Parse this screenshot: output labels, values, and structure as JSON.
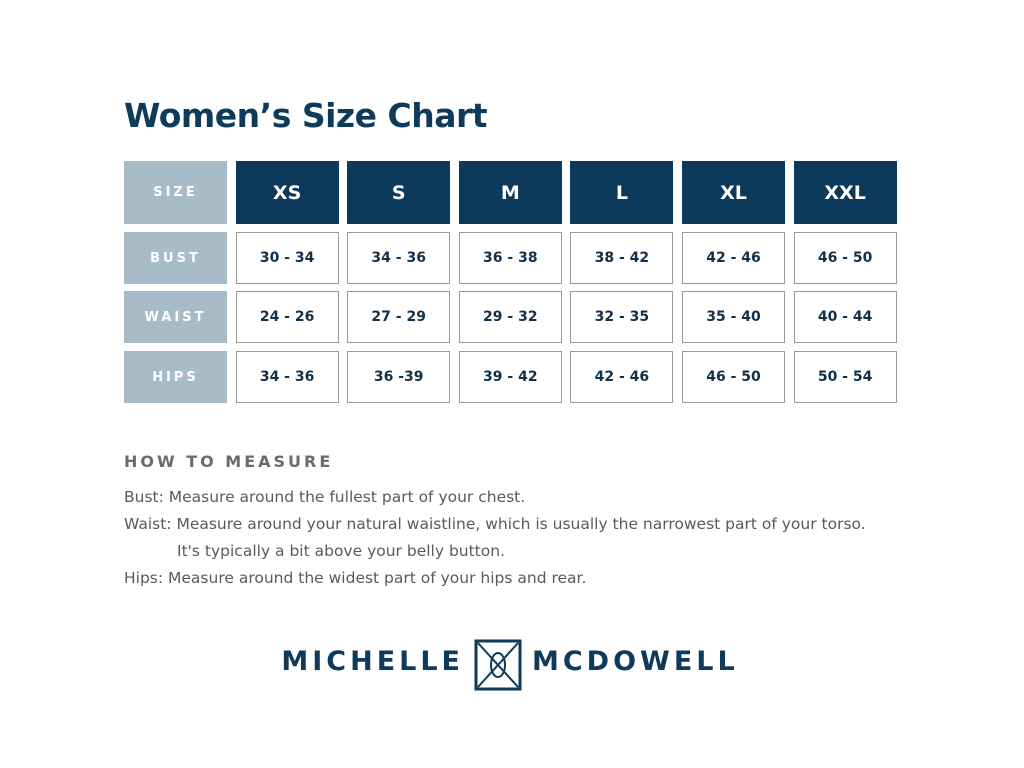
{
  "title": "Women’s Size Chart",
  "table": {
    "header": [
      "SIZE",
      "XS",
      "S",
      "M",
      "L",
      "XL",
      "XXL"
    ],
    "rows": [
      [
        "BUST",
        "30 - 34",
        "34 - 36",
        "36 - 38",
        "38 - 42",
        "42 - 46",
        "46 - 50"
      ],
      [
        "WAIST",
        "24 - 26",
        "27 - 29",
        "29 - 32",
        "32 - 35",
        "35 - 40",
        "40 - 44"
      ],
      [
        "HIPS",
        "34 - 36",
        "36 -39",
        "39 - 42",
        "42 - 46",
        "46 - 50",
        "50 - 54"
      ]
    ]
  },
  "how_to_measure": {
    "heading": "HOW TO MEASURE",
    "lines": [
      "Bust: Measure around the fullest part of your chest.",
      "Waist: Measure around your natural waistline, which is usually the narrowest part of your torso.",
      "It's typically a bit above your belly button.",
      "Hips: Measure around the widest part of your hips and rear."
    ]
  },
  "brand": {
    "left": "MICHELLE",
    "right": "MCDOWELL"
  }
}
